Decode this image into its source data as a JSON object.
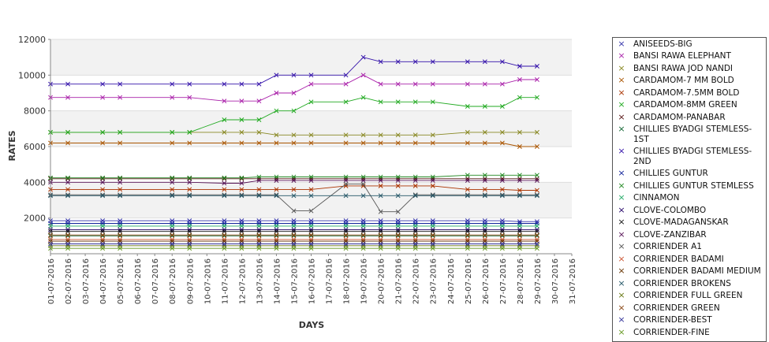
{
  "chart_data": {
    "type": "line",
    "xlabel": "DAYS",
    "ylabel": "RATES",
    "ylim": [
      0,
      12000
    ],
    "y_ticks": [
      "2000",
      "4000",
      "6000",
      "8000",
      "10000",
      "12000"
    ],
    "x_ticks": [
      "01-07-2016",
      "02-07-2016",
      "03-07-2016",
      "04-07-2016",
      "05-07-2016",
      "06-07-2016",
      "07-07-2016",
      "08-07-2016",
      "09-07-2016",
      "10-07-2016",
      "11-07-2016",
      "12-07-2016",
      "13-07-2016",
      "14-07-2016",
      "15-07-2016",
      "16-07-2016",
      "17-07-2016",
      "18-07-2016",
      "19-07-2016",
      "20-07-2016",
      "21-07-2016",
      "22-07-2016",
      "23-07-2016",
      "24-07-2016",
      "25-07-2016",
      "26-07-2016",
      "27-07-2016",
      "28-07-2016",
      "29-07-2016",
      "30-07-2016",
      "31-07-2016"
    ],
    "x_days": [
      1,
      2,
      4,
      5,
      8,
      9,
      11,
      12,
      13,
      14,
      15,
      16,
      18,
      19,
      20,
      21,
      22,
      23,
      25,
      26,
      27,
      28,
      29
    ],
    "x_range": [
      1,
      31
    ],
    "grid": true,
    "legend_position": "right",
    "series": [
      {
        "name": "ANISEEDS-BIG",
        "color": "#3333aa",
        "values": [
          1850,
          1850,
          1850,
          1850,
          1850,
          1850,
          1850,
          1850,
          1850,
          1850,
          1850,
          1850,
          1850,
          1850,
          1850,
          1850,
          1850,
          1850,
          1850,
          1850,
          1850,
          1800,
          1800
        ]
      },
      {
        "name": "BANSI RAWA ELEPHANT",
        "color": "#aa22aa",
        "values": [
          8750,
          8750,
          8750,
          8750,
          8750,
          8750,
          8550,
          8550,
          8550,
          9000,
          9000,
          9500,
          9500,
          10000,
          9500,
          9500,
          9500,
          9500,
          9500,
          9500,
          9500,
          9750,
          9750
        ]
      },
      {
        "name": "BANSI RAWA JOD NANDI",
        "color": "#888822",
        "values": [
          6800,
          6800,
          6800,
          6800,
          6800,
          6800,
          6800,
          6800,
          6800,
          6650,
          6650,
          6650,
          6650,
          6650,
          6650,
          6650,
          6650,
          6650,
          6800,
          6800,
          6800,
          6800,
          6800
        ]
      },
      {
        "name": "CARDAMOM-7 MM BOLD",
        "color": "#aa5500",
        "values": [
          6200,
          6200,
          6200,
          6200,
          6200,
          6200,
          6200,
          6200,
          6200,
          6200,
          6200,
          6200,
          6200,
          6200,
          6200,
          6200,
          6200,
          6200,
          6200,
          6200,
          6200,
          6000,
          6000
        ]
      },
      {
        "name": "CARDAMOM-7.5MM BOLD",
        "color": "#aa3300",
        "values": [
          3600,
          3600,
          3600,
          3600,
          3600,
          3600,
          3600,
          3600,
          3600,
          3600,
          3600,
          3600,
          3800,
          3800,
          3800,
          3800,
          3800,
          3800,
          3600,
          3600,
          3600,
          3550,
          3550
        ]
      },
      {
        "name": "CARDAMOM-8MM GREEN",
        "color": "#22aa22",
        "values": [
          6800,
          6800,
          6800,
          6800,
          6800,
          6800,
          7500,
          7500,
          7500,
          8000,
          8000,
          8500,
          8500,
          8750,
          8500,
          8500,
          8500,
          8500,
          8250,
          8250,
          8250,
          8750,
          8750
        ]
      },
      {
        "name": "CARDAMOM-PANABAR",
        "color": "#551111",
        "values": [
          4200,
          4200,
          4200,
          4200,
          4200,
          4200,
          4200,
          4200,
          4200,
          4200,
          4200,
          4200,
          4200,
          4200,
          4200,
          4200,
          4200,
          4200,
          4200,
          4200,
          4200,
          4200,
          4200
        ]
      },
      {
        "name": "CHILLIES BYADGI STEMLESS-1ST",
        "color": "#116633",
        "values": [
          1000,
          1000,
          1000,
          1000,
          1000,
          1000,
          1000,
          1000,
          1000,
          1000,
          1000,
          1000,
          1000,
          1000,
          1000,
          1000,
          1000,
          1000,
          1000,
          1000,
          1000,
          1000,
          1000
        ]
      },
      {
        "name": "CHILLIES BYADGI STEMLESS-2ND",
        "color": "#3311aa",
        "values": [
          9500,
          9500,
          9500,
          9500,
          9500,
          9500,
          9500,
          9500,
          9500,
          10000,
          10000,
          10000,
          10000,
          11000,
          10750,
          10750,
          10750,
          10750,
          10750,
          10750,
          10750,
          10500,
          10500
        ]
      },
      {
        "name": "CHILLIES GUNTUR",
        "color": "#112299",
        "values": [
          1700,
          1700,
          1700,
          1700,
          1700,
          1700,
          1700,
          1700,
          1700,
          1700,
          1700,
          1700,
          1700,
          1700,
          1700,
          1700,
          1700,
          1700,
          1700,
          1700,
          1700,
          1700,
          1700
        ]
      },
      {
        "name": "CHILLIES GUNTUR STEMLESS",
        "color": "#228822",
        "values": [
          4250,
          4250,
          4250,
          4250,
          4250,
          4250,
          4250,
          4250,
          4300,
          4300,
          4300,
          4300,
          4300,
          4300,
          4300,
          4300,
          4300,
          4300,
          4400,
          4400,
          4400,
          4400,
          4400
        ]
      },
      {
        "name": "CINNAMON",
        "color": "#22aa66",
        "values": [
          1550,
          1550,
          1550,
          1550,
          1550,
          1550,
          1550,
          1550,
          1550,
          1550,
          1550,
          1550,
          1550,
          1550,
          1550,
          1550,
          1550,
          1550,
          1550,
          1550,
          1550,
          1550,
          1550
        ]
      },
      {
        "name": "CLOVE-COLOMBO",
        "color": "#220066",
        "values": [
          1350,
          1350,
          1350,
          1350,
          1350,
          1350,
          1350,
          1350,
          1350,
          1350,
          1350,
          1350,
          1350,
          1350,
          1350,
          1350,
          1350,
          1350,
          1350,
          1350,
          1350,
          1350,
          1350
        ]
      },
      {
        "name": "CLOVE-MADAGANSKAR",
        "color": "#111111",
        "values": [
          1250,
          1250,
          1250,
          1250,
          1250,
          1250,
          1250,
          1250,
          1250,
          1250,
          1250,
          1250,
          1250,
          1250,
          1250,
          1250,
          1250,
          1250,
          1250,
          1250,
          1250,
          1250,
          1250
        ]
      },
      {
        "name": "CLOVE-ZANZIBAR",
        "color": "#551155",
        "values": [
          4000,
          4000,
          4000,
          4000,
          4000,
          4000,
          3950,
          3950,
          4100,
          4100,
          4100,
          4100,
          4100,
          4100,
          4100,
          4100,
          4100,
          4100,
          4100,
          4100,
          4100,
          4100,
          4100
        ]
      },
      {
        "name": "CORRIENDER A1",
        "color": "#555555",
        "values": [
          3300,
          3300,
          3300,
          3300,
          3300,
          3300,
          3300,
          3300,
          3300,
          3300,
          2400,
          2400,
          3900,
          3900,
          2350,
          2350,
          3300,
          3300,
          3300,
          3300,
          3300,
          3300,
          3300
        ]
      },
      {
        "name": "CORRIENDER BADAMI",
        "color": "#cc5533",
        "values": [
          800,
          800,
          800,
          800,
          800,
          800,
          800,
          800,
          800,
          800,
          800,
          800,
          800,
          800,
          800,
          800,
          800,
          800,
          800,
          800,
          800,
          800,
          800
        ]
      },
      {
        "name": "CORRIENDER BADAMI MEDIUM",
        "color": "#663300",
        "values": [
          700,
          700,
          700,
          700,
          700,
          700,
          700,
          700,
          700,
          700,
          700,
          700,
          700,
          700,
          700,
          700,
          700,
          700,
          700,
          700,
          700,
          700,
          700
        ]
      },
      {
        "name": "CORRIENDER BROKENS",
        "color": "#225566",
        "values": [
          3250,
          3250,
          3250,
          3250,
          3250,
          3250,
          3250,
          3250,
          3250,
          3250,
          3250,
          3250,
          3250,
          3250,
          3250,
          3250,
          3250,
          3250,
          3250,
          3250,
          3250,
          3250,
          3250
        ]
      },
      {
        "name": "CORRIENDER FULL GREEN",
        "color": "#667711",
        "values": [
          450,
          450,
          450,
          450,
          450,
          450,
          450,
          450,
          450,
          450,
          450,
          450,
          450,
          450,
          450,
          450,
          450,
          450,
          450,
          450,
          450,
          450,
          450
        ]
      },
      {
        "name": "CORRIENDER GREEN",
        "color": "#884411",
        "values": [
          1050,
          1050,
          1050,
          1050,
          1050,
          1050,
          1050,
          1050,
          1050,
          1050,
          1050,
          1050,
          1050,
          1050,
          1050,
          1050,
          1050,
          1050,
          1050,
          1050,
          1050,
          1050,
          1050
        ]
      },
      {
        "name": "CORRIENDER-BEST",
        "color": "#333399",
        "values": [
          550,
          550,
          550,
          550,
          550,
          550,
          550,
          550,
          550,
          550,
          550,
          550,
          550,
          550,
          550,
          550,
          550,
          550,
          550,
          550,
          550,
          550,
          550
        ]
      },
      {
        "name": "CORRIENDER-FINE",
        "color": "#669922",
        "values": [
          300,
          300,
          300,
          300,
          300,
          300,
          300,
          300,
          300,
          300,
          300,
          300,
          300,
          300,
          300,
          300,
          300,
          300,
          300,
          300,
          300,
          300,
          300
        ]
      }
    ]
  }
}
